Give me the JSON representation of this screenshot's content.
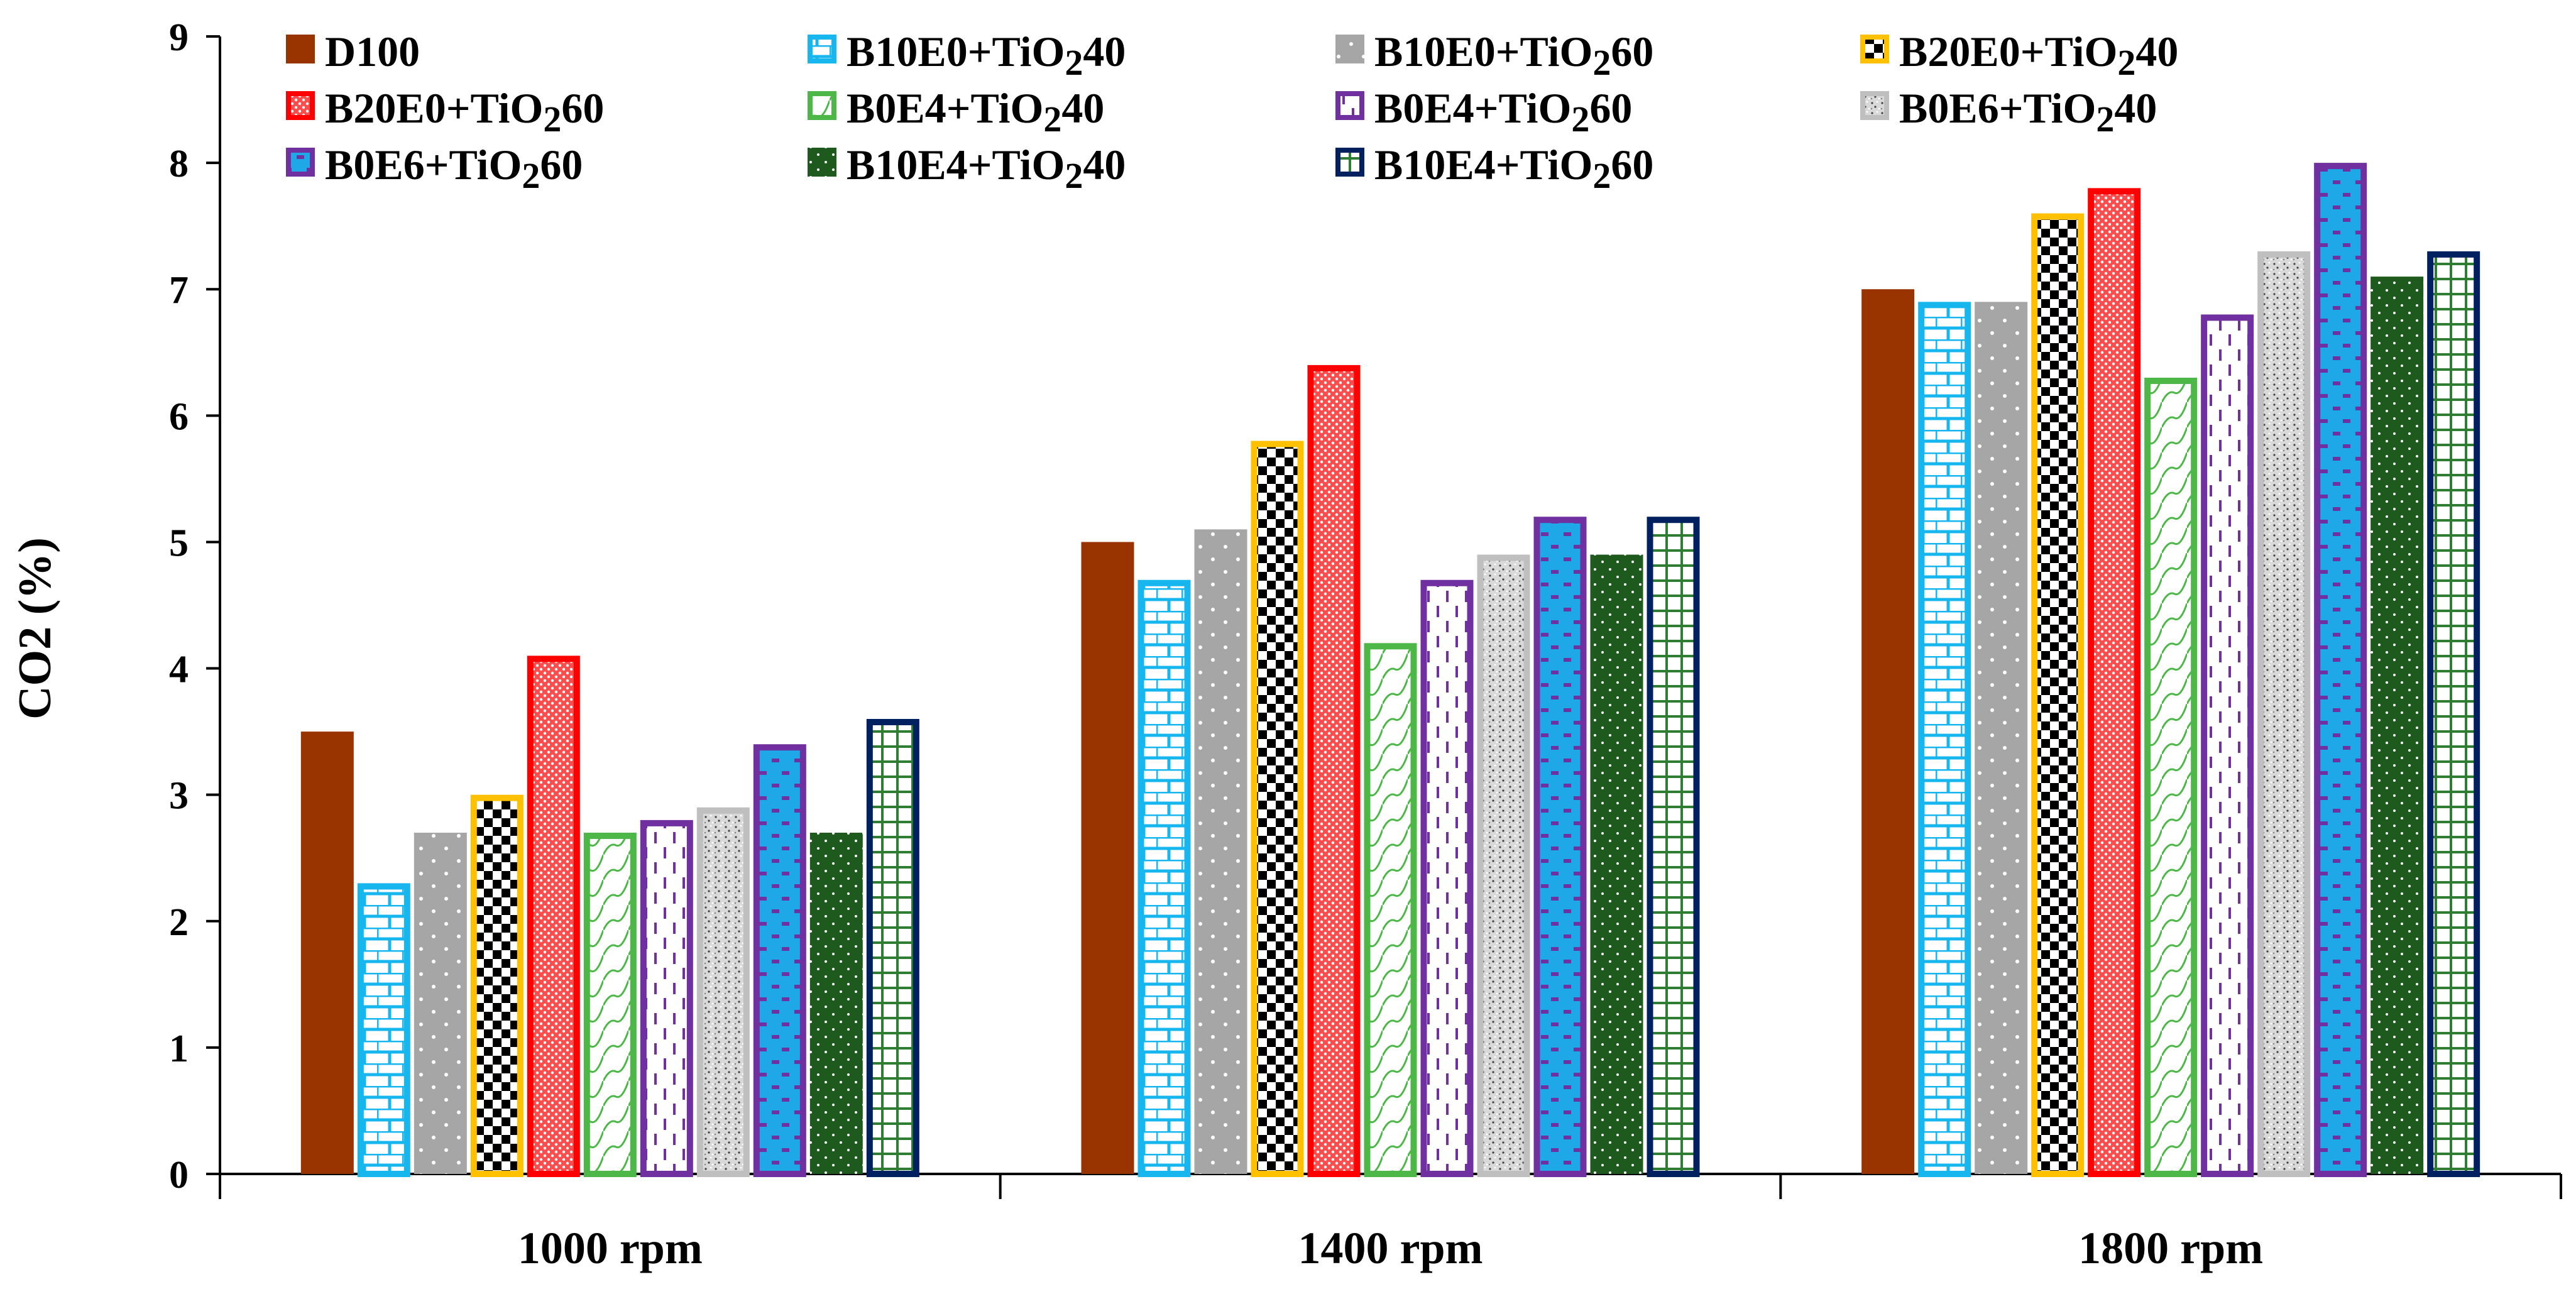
{
  "chart_data": {
    "type": "bar",
    "ylabel": "CO2 (%)",
    "xlabel": "",
    "ylim": [
      0,
      9
    ],
    "yticks": [
      0,
      1,
      2,
      3,
      4,
      5,
      6,
      7,
      8,
      9
    ],
    "grid": false,
    "legend_position": "top",
    "categories": [
      "1000 rpm",
      "1400 rpm",
      "1800 rpm"
    ],
    "series": [
      {
        "name": "D100",
        "values": [
          3.5,
          5.0,
          7.0
        ],
        "color": "#993300",
        "stroke": "#993300",
        "pattern": "solid"
      },
      {
        "name": "B10E0+TiO240",
        "values": [
          2.3,
          4.7,
          6.9
        ],
        "color": "#ffffff",
        "stroke": "#17b6ef",
        "pattern": "bricks"
      },
      {
        "name": "B10E0+TiO260",
        "values": [
          2.7,
          5.1,
          6.9
        ],
        "color": "#a6a6a6",
        "stroke": "#a6a6a6",
        "pattern": "dots-white"
      },
      {
        "name": "B20E0+TiO240",
        "values": [
          3.0,
          5.8,
          7.6
        ],
        "color": "#ffffff",
        "stroke": "#ffc000",
        "pattern": "checker"
      },
      {
        "name": "B20E0+TiO260",
        "values": [
          4.1,
          6.4,
          7.8
        ],
        "color": "#ff9999",
        "stroke": "#ff0000",
        "pattern": "fine-dots"
      },
      {
        "name": "B0E4+TiO240",
        "values": [
          2.7,
          4.2,
          6.3
        ],
        "color": "#ffffff",
        "stroke": "#4db848",
        "pattern": "wave"
      },
      {
        "name": "B0E4+TiO260",
        "values": [
          2.8,
          4.7,
          6.8
        ],
        "color": "#ffffff",
        "stroke": "#7030a0",
        "pattern": "dashes"
      },
      {
        "name": "B0E6+TiO240",
        "values": [
          2.9,
          4.9,
          7.3
        ],
        "color": "#dddddd",
        "stroke": "#bfbfbf",
        "pattern": "speckle"
      },
      {
        "name": "B0E6+TiO260",
        "values": [
          3.4,
          5.2,
          8.0
        ],
        "color": "#1fa8e8",
        "stroke": "#7030a0",
        "pattern": "purple-dashes"
      },
      {
        "name": "B10E4+TiO240",
        "values": [
          2.7,
          4.9,
          7.1
        ],
        "color": "#1e5a1e",
        "stroke": "#1e5a1e",
        "pattern": "dark-dots"
      },
      {
        "name": "B10E4+TiO260",
        "values": [
          3.6,
          5.2,
          7.3
        ],
        "color": "#ffffff",
        "stroke": "#002060",
        "pattern": "grid"
      }
    ]
  }
}
